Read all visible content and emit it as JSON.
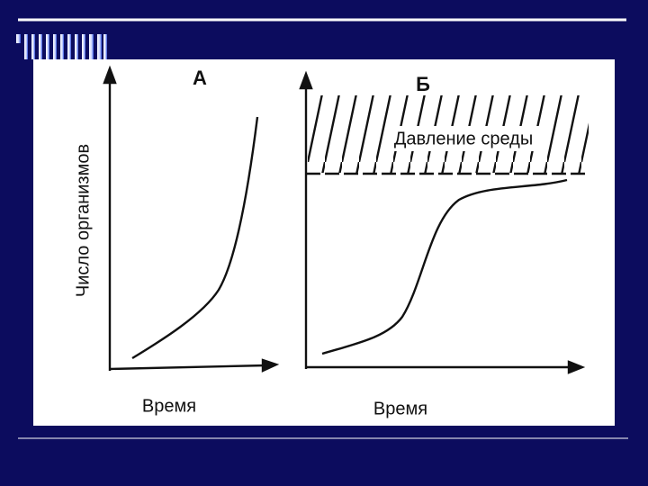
{
  "y_axis": "Число организмов",
  "panels": [
    {
      "label": "А",
      "x_axis": "Время"
    },
    {
      "label": "Б",
      "x_axis": "Время",
      "zone_label": "Давление среды"
    }
  ]
}
